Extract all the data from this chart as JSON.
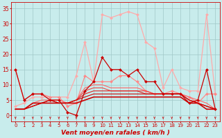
{
  "title": "",
  "xlabel": "Vent moyen/en rafales ( km/h )",
  "background_color": "#c8ecec",
  "grid_color": "#a0c8c8",
  "x_ticks": [
    0,
    1,
    2,
    3,
    4,
    5,
    6,
    7,
    8,
    9,
    10,
    11,
    12,
    13,
    14,
    15,
    16,
    17,
    18,
    19,
    20,
    21,
    22,
    23
  ],
  "ylim": [
    -2,
    37
  ],
  "xlim": [
    -0.5,
    23.5
  ],
  "lines": [
    {
      "x": [
        0,
        1,
        2,
        3,
        4,
        5,
        6,
        7,
        8,
        9,
        10,
        11,
        12,
        13,
        14,
        15,
        16,
        17,
        18,
        19,
        20,
        21,
        22,
        23
      ],
      "y": [
        3,
        4,
        6,
        6,
        6,
        6,
        6,
        13,
        24,
        11,
        33,
        32,
        33,
        34,
        33,
        24,
        22,
        9,
        15,
        9,
        8,
        8,
        33,
        7
      ],
      "color": "#ffaaaa",
      "lw": 0.9,
      "marker": "D",
      "ms": 2.0,
      "zorder": 2
    },
    {
      "x": [
        0,
        1,
        2,
        3,
        4,
        5,
        6,
        7,
        8,
        9,
        10,
        11,
        12,
        13,
        14,
        15,
        16,
        17,
        18,
        19,
        20,
        21,
        22,
        23
      ],
      "y": [
        15,
        5,
        7,
        7,
        6,
        6,
        3,
        4,
        13,
        11,
        11,
        11,
        13,
        13,
        11,
        8,
        7,
        7,
        8,
        7,
        6,
        4,
        7,
        7
      ],
      "color": "#ff8888",
      "lw": 0.9,
      "marker": "D",
      "ms": 2.0,
      "zorder": 3
    },
    {
      "x": [
        0,
        1,
        2,
        3,
        4,
        5,
        6,
        7,
        8,
        9,
        10,
        11,
        12,
        13,
        14,
        15,
        16,
        17,
        18,
        19,
        20,
        21,
        22,
        23
      ],
      "y": [
        15,
        5,
        7,
        7,
        5,
        5,
        1,
        0,
        8,
        11,
        19,
        15,
        15,
        13,
        15,
        11,
        11,
        7,
        7,
        7,
        4,
        5,
        15,
        2
      ],
      "color": "#cc0000",
      "lw": 0.9,
      "marker": "D",
      "ms": 2.0,
      "zorder": 5
    },
    {
      "x": [
        0,
        1,
        2,
        3,
        4,
        5,
        6,
        7,
        8,
        9,
        10,
        11,
        12,
        13,
        14,
        15,
        16,
        17,
        18,
        19,
        20,
        21,
        22,
        23
      ],
      "y": [
        2,
        2,
        4,
        5,
        5,
        5,
        4,
        5,
        9,
        10,
        10,
        9,
        9,
        9,
        9,
        8,
        7,
        7,
        7,
        7,
        6,
        5,
        4,
        2
      ],
      "color": "#ff6666",
      "lw": 0.8,
      "marker": null,
      "ms": 0,
      "zorder": 3
    },
    {
      "x": [
        0,
        1,
        2,
        3,
        4,
        5,
        6,
        7,
        8,
        9,
        10,
        11,
        12,
        13,
        14,
        15,
        16,
        17,
        18,
        19,
        20,
        21,
        22,
        23
      ],
      "y": [
        2,
        2,
        3,
        4,
        5,
        4,
        4,
        5,
        8,
        9,
        9,
        8,
        8,
        8,
        8,
        8,
        7,
        7,
        7,
        7,
        5,
        4,
        3,
        2
      ],
      "color": "#ee4444",
      "lw": 0.8,
      "marker": null,
      "ms": 0,
      "zorder": 3
    },
    {
      "x": [
        0,
        1,
        2,
        3,
        4,
        5,
        6,
        7,
        8,
        9,
        10,
        11,
        12,
        13,
        14,
        15,
        16,
        17,
        18,
        19,
        20,
        21,
        22,
        23
      ],
      "y": [
        2,
        2,
        3,
        4,
        5,
        4,
        4,
        5,
        7,
        8,
        8,
        8,
        8,
        8,
        8,
        7,
        7,
        7,
        7,
        7,
        5,
        4,
        3,
        2
      ],
      "color": "#dd2222",
      "lw": 0.8,
      "marker": null,
      "ms": 0,
      "zorder": 3
    },
    {
      "x": [
        0,
        1,
        2,
        3,
        4,
        5,
        6,
        7,
        8,
        9,
        10,
        11,
        12,
        13,
        14,
        15,
        16,
        17,
        18,
        19,
        20,
        21,
        22,
        23
      ],
      "y": [
        2,
        2,
        3,
        4,
        5,
        4,
        4,
        5,
        6,
        7,
        7,
        7,
        7,
        7,
        7,
        7,
        7,
        7,
        7,
        7,
        5,
        4,
        3,
        2
      ],
      "color": "#cc0000",
      "lw": 0.8,
      "marker": null,
      "ms": 0,
      "zorder": 3
    },
    {
      "x": [
        0,
        1,
        2,
        3,
        4,
        5,
        6,
        7,
        8,
        9,
        10,
        11,
        12,
        13,
        14,
        15,
        16,
        17,
        18,
        19,
        20,
        21,
        22,
        23
      ],
      "y": [
        2,
        2,
        4,
        4,
        4,
        4,
        4,
        4,
        5,
        6,
        6,
        6,
        6,
        6,
        6,
        6,
        6,
        6,
        6,
        6,
        4,
        4,
        2,
        2
      ],
      "color": "#cc0000",
      "lw": 1.2,
      "marker": null,
      "ms": 0,
      "zorder": 4
    }
  ],
  "tick_label_fontsize": 5.0,
  "xlabel_fontsize": 6.5,
  "ytick_fontsize": 5.5,
  "yticks": [
    0,
    5,
    10,
    15,
    20,
    25,
    30,
    35
  ]
}
